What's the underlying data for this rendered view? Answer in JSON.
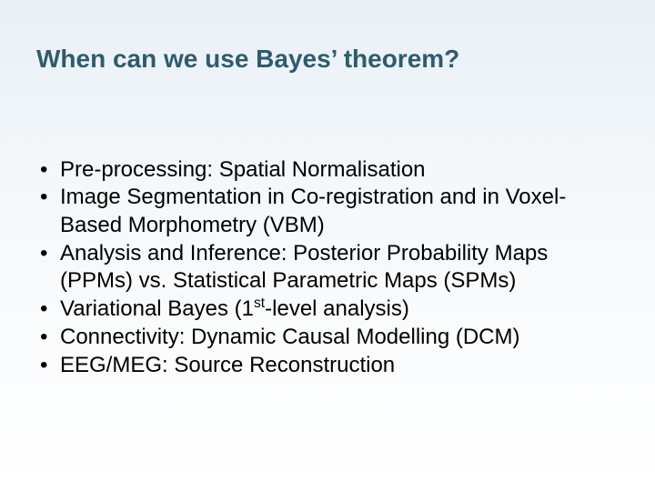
{
  "title_color": "#2f5b6e",
  "text_color": "#000000",
  "bg_top": "#e8f0f6",
  "bg_bottom": "#ffffff",
  "title": "When can we use Bayes' theorem?",
  "bullets": [
    "Pre-processing: Spatial Normalisation",
    "Image Segmentation in Co-registration and in Voxel-Based Morphometry (VBM)",
    "Analysis and Inference: Posterior Probability Maps (PPMs) vs. Statistical Parametric Maps (SPMs)",
    "Variational Bayes (1st-level analysis)",
    "Connectivity: Dynamic Causal Modelling (DCM)",
    "EEG/MEG: Source Reconstruction"
  ]
}
